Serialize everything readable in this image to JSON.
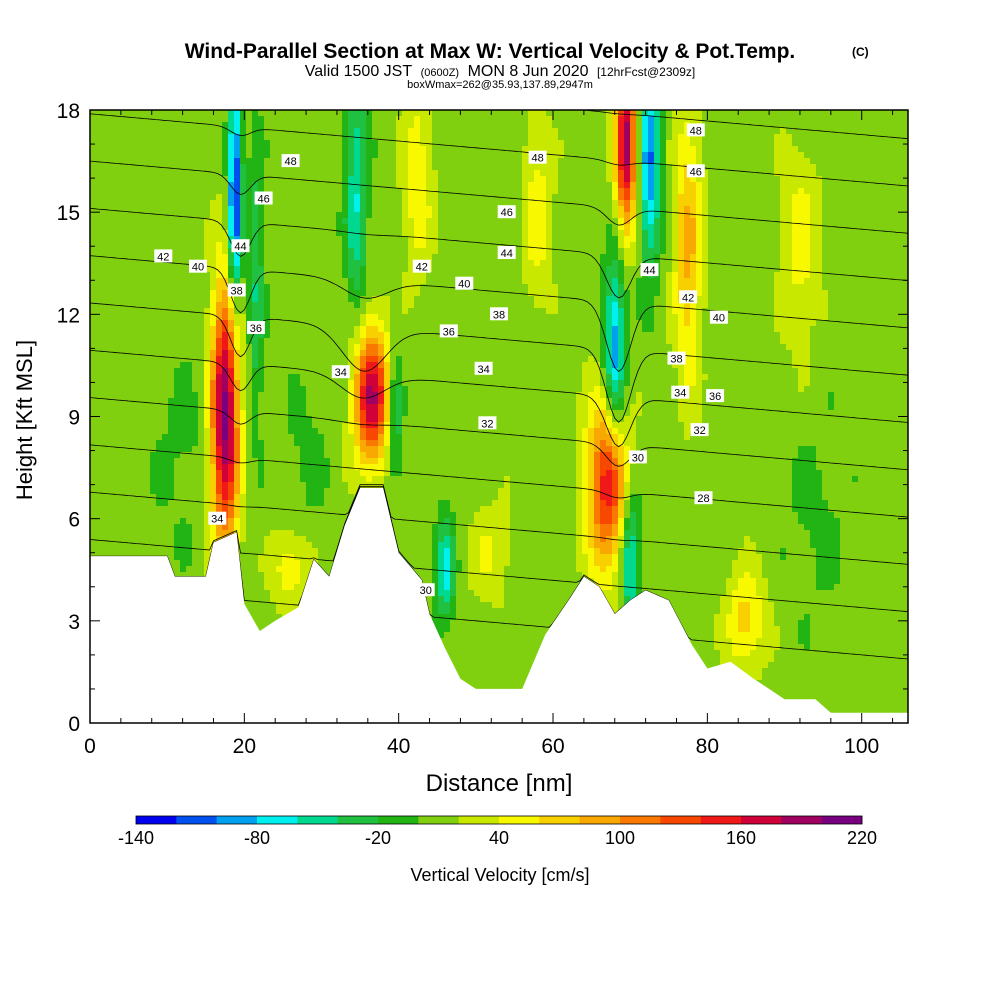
{
  "header": {
    "title": "Wind-Parallel Section at Max W: Vertical Velocity & Pot.Temp.",
    "copyright": "(C)",
    "valid_prefix": "Valid 1500 JST",
    "valid_zulu": "(0600Z)",
    "valid_date": "MON 8 Jun 2020",
    "forecast_info": "[12hrFcst@2309z]",
    "box_info": "boxWmax=262@35.93,137.89,2947m"
  },
  "chart_data": {
    "type": "heatmap",
    "title": "Wind-Parallel Section at Max W: Vertical Velocity & Pot.Temp.",
    "xlabel": "Distance [nm]",
    "ylabel": "Height [Kft MSL]",
    "xlim": [
      0,
      106
    ],
    "ylim": [
      0,
      18
    ],
    "x_ticks": [
      "0",
      "20",
      "40",
      "60",
      "80",
      "100"
    ],
    "y_ticks": [
      "0",
      "3",
      "6",
      "9",
      "12",
      "15",
      "18"
    ],
    "colorbar": {
      "label": "Vertical Velocity [cm/s]",
      "tick_labels": [
        "-140",
        "-80",
        "-20",
        "40",
        "100",
        "160",
        "220"
      ],
      "min": -140,
      "max": 220,
      "step": 20,
      "colors": [
        "#0000f0",
        "#0050f0",
        "#00a0f0",
        "#00f0f0",
        "#00d890",
        "#20c040",
        "#22b414",
        "#80d010",
        "#c8e800",
        "#f8f800",
        "#f8d000",
        "#f8a800",
        "#f87800",
        "#f84800",
        "#f01818",
        "#d00038",
        "#a00060",
        "#780080"
      ]
    },
    "terrain": [
      [
        0,
        4.9
      ],
      [
        10,
        4.9
      ],
      [
        11,
        4.3
      ],
      [
        15,
        4.3
      ],
      [
        16,
        5.3
      ],
      [
        19,
        5.6
      ],
      [
        20,
        3.5
      ],
      [
        22,
        2.7
      ],
      [
        24,
        3.0
      ],
      [
        27,
        3.4
      ],
      [
        29,
        4.8
      ],
      [
        31,
        4.3
      ],
      [
        33,
        5.8
      ],
      [
        35,
        6.9
      ],
      [
        38,
        6.9
      ],
      [
        40,
        5.0
      ],
      [
        43,
        4.2
      ],
      [
        44,
        3.2
      ],
      [
        46,
        2.2
      ],
      [
        48,
        1.3
      ],
      [
        50,
        1.0
      ],
      [
        56,
        1.0
      ],
      [
        59,
        2.6
      ],
      [
        62,
        3.6
      ],
      [
        64,
        4.3
      ],
      [
        66,
        4.0
      ],
      [
        68,
        3.2
      ],
      [
        70,
        3.6
      ],
      [
        72,
        3.9
      ],
      [
        75,
        3.6
      ],
      [
        78,
        2.3
      ],
      [
        80,
        1.6
      ],
      [
        83,
        1.8
      ],
      [
        86,
        1.3
      ],
      [
        88,
        1.0
      ],
      [
        90,
        0.7
      ],
      [
        94,
        0.7
      ],
      [
        96,
        0.3
      ],
      [
        106,
        0.3
      ]
    ],
    "background_w": 10,
    "w_features": [
      {
        "x": 17.5,
        "y": 9.0,
        "half_width": 1.8,
        "half_height": 3.8,
        "w": 200
      },
      {
        "x": 36.5,
        "y": 9.6,
        "half_width": 2.3,
        "half_height": 2.0,
        "w": 170
      },
      {
        "x": 67.0,
        "y": 7.0,
        "half_width": 2.6,
        "half_height": 2.6,
        "w": 140
      },
      {
        "x": 69.5,
        "y": 17.0,
        "half_width": 1.4,
        "half_height": 2.5,
        "w": 180
      },
      {
        "x": 77.5,
        "y": 14.0,
        "half_width": 1.8,
        "half_height": 4.0,
        "w": 75
      },
      {
        "x": 18.8,
        "y": 15.5,
        "half_width": 0.9,
        "half_height": 3.4,
        "w": -140
      },
      {
        "x": 21.5,
        "y": 13.0,
        "half_width": 1.0,
        "half_height": 4.0,
        "w": -50
      },
      {
        "x": 34.5,
        "y": 15.5,
        "half_width": 1.4,
        "half_height": 3.5,
        "w": -70
      },
      {
        "x": 39.5,
        "y": 9.0,
        "half_width": 1.0,
        "half_height": 2.0,
        "w": -60
      },
      {
        "x": 68.0,
        "y": 11.0,
        "half_width": 1.4,
        "half_height": 2.5,
        "w": -110
      },
      {
        "x": 72.5,
        "y": 16.5,
        "half_width": 1.4,
        "half_height": 3.0,
        "w": -110
      },
      {
        "x": 70.0,
        "y": 4.8,
        "half_width": 1.2,
        "half_height": 2.0,
        "w": -90
      },
      {
        "x": 46.0,
        "y": 4.5,
        "half_width": 1.2,
        "half_height": 1.5,
        "w": -80
      },
      {
        "x": 42.5,
        "y": 16.0,
        "half_width": 2.0,
        "half_height": 3.0,
        "w": 45
      },
      {
        "x": 58.0,
        "y": 15.0,
        "half_width": 2.0,
        "half_height": 3.0,
        "w": 40
      },
      {
        "x": 92.0,
        "y": 14.0,
        "half_width": 2.5,
        "half_height": 3.0,
        "w": 40
      },
      {
        "x": 26.0,
        "y": 4.5,
        "half_width": 2.5,
        "half_height": 1.2,
        "w": 45
      },
      {
        "x": 52.0,
        "y": 5.0,
        "half_width": 3.0,
        "half_height": 1.5,
        "w": 30
      },
      {
        "x": 85.0,
        "y": 3.0,
        "half_width": 2.5,
        "half_height": 1.5,
        "w": 60
      },
      {
        "x": 12.0,
        "y": 8.0,
        "half_width": 4.0,
        "half_height": 3.0,
        "w": -15
      },
      {
        "x": 28.0,
        "y": 8.0,
        "half_width": 3.0,
        "half_height": 2.5,
        "w": -15
      },
      {
        "x": 94.0,
        "y": 6.0,
        "half_width": 4.0,
        "half_height": 3.0,
        "w": -15
      }
    ],
    "theta_contours": {
      "start": 28,
      "end": 48,
      "step": 1,
      "base_height": 4.0,
      "lapse_per_kft": 0.72,
      "slope_per_nm": -0.02,
      "dips": [
        {
          "x": 19.5,
          "y": 13.0,
          "sigma_x": 1.8,
          "sigma_y": 3.5,
          "dy": 1.3
        },
        {
          "x": 35.5,
          "y": 11.5,
          "sigma_x": 4.0,
          "sigma_y": 1.6,
          "dy": 1.3
        },
        {
          "x": 68.5,
          "y": 11.5,
          "sigma_x": 2.2,
          "sigma_y": 3.0,
          "dy": 2.2
        }
      ]
    },
    "contour_labels": [
      {
        "x": 9.5,
        "y": 13.7,
        "text": "42"
      },
      {
        "x": 14,
        "y": 13.4,
        "text": "40"
      },
      {
        "x": 19,
        "y": 12.7,
        "text": "38"
      },
      {
        "x": 21.5,
        "y": 11.6,
        "text": "36"
      },
      {
        "x": 19.5,
        "y": 14.0,
        "text": "44"
      },
      {
        "x": 22.5,
        "y": 15.4,
        "text": "46"
      },
      {
        "x": 26,
        "y": 16.5,
        "text": "48"
      },
      {
        "x": 32.5,
        "y": 10.3,
        "text": "34"
      },
      {
        "x": 16.5,
        "y": 6.0,
        "text": "34"
      },
      {
        "x": 43.5,
        "y": 3.9,
        "text": "30"
      },
      {
        "x": 43,
        "y": 13.4,
        "text": "42"
      },
      {
        "x": 48.5,
        "y": 12.9,
        "text": "40"
      },
      {
        "x": 53,
        "y": 12.0,
        "text": "38"
      },
      {
        "x": 46.5,
        "y": 11.5,
        "text": "36"
      },
      {
        "x": 51,
        "y": 10.4,
        "text": "34"
      },
      {
        "x": 51.5,
        "y": 8.8,
        "text": "32"
      },
      {
        "x": 54,
        "y": 13.8,
        "text": "44"
      },
      {
        "x": 54,
        "y": 15.0,
        "text": "46"
      },
      {
        "x": 58,
        "y": 16.6,
        "text": "48"
      },
      {
        "x": 72.5,
        "y": 13.3,
        "text": "44"
      },
      {
        "x": 77.5,
        "y": 12.5,
        "text": "42"
      },
      {
        "x": 81.5,
        "y": 11.9,
        "text": "40"
      },
      {
        "x": 76,
        "y": 10.7,
        "text": "38"
      },
      {
        "x": 76.5,
        "y": 9.7,
        "text": "34"
      },
      {
        "x": 81,
        "y": 9.6,
        "text": "36"
      },
      {
        "x": 79,
        "y": 8.6,
        "text": "32"
      },
      {
        "x": 71,
        "y": 7.8,
        "text": "30"
      },
      {
        "x": 79.5,
        "y": 6.6,
        "text": "28"
      },
      {
        "x": 78.5,
        "y": 17.4,
        "text": "48"
      },
      {
        "x": 78.5,
        "y": 16.2,
        "text": "46"
      }
    ]
  }
}
